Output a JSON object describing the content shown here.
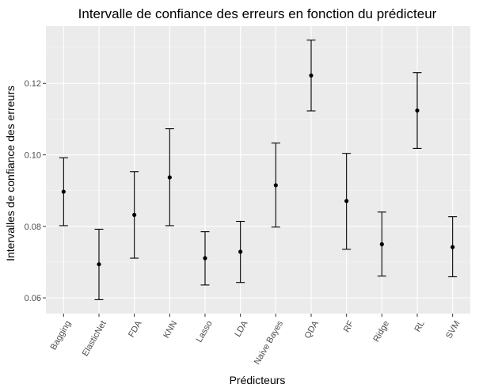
{
  "chart_data": {
    "type": "errorbar",
    "title": "Intervalle de confiance des erreurs en fonction du prédicteur",
    "xlabel": "Prédicteurs",
    "ylabel": "Intervalles de confiance des erreurs",
    "categories": [
      "Bagging",
      "ElasticNet",
      "FDA",
      "KNN",
      "Lasso",
      "LDA",
      "Naive Bayes",
      "QDA",
      "RF",
      "Ridge",
      "RL",
      "SVM"
    ],
    "mean": [
      0.0897,
      0.0694,
      0.0832,
      0.0937,
      0.0711,
      0.0729,
      0.0915,
      0.1222,
      0.0871,
      0.075,
      0.1124,
      0.0742
    ],
    "lower": [
      0.0802,
      0.0595,
      0.0711,
      0.0802,
      0.0636,
      0.0643,
      0.0798,
      0.1123,
      0.0736,
      0.0661,
      0.1018,
      0.0659
    ],
    "upper": [
      0.0992,
      0.0792,
      0.0953,
      0.1073,
      0.0785,
      0.0814,
      0.1033,
      0.1321,
      0.1004,
      0.084,
      0.123,
      0.0827
    ],
    "yticks": [
      "0.06",
      "0.08",
      "0.10",
      "0.12"
    ],
    "ylim": [
      0.0556,
      0.136
    ],
    "grid": true
  },
  "colors": {
    "panel_background": "#ebebeb",
    "grid_major": "#ffffff",
    "grid_minor": "#f5f5f5",
    "point": "#000000",
    "errorbar": "#000000"
  }
}
